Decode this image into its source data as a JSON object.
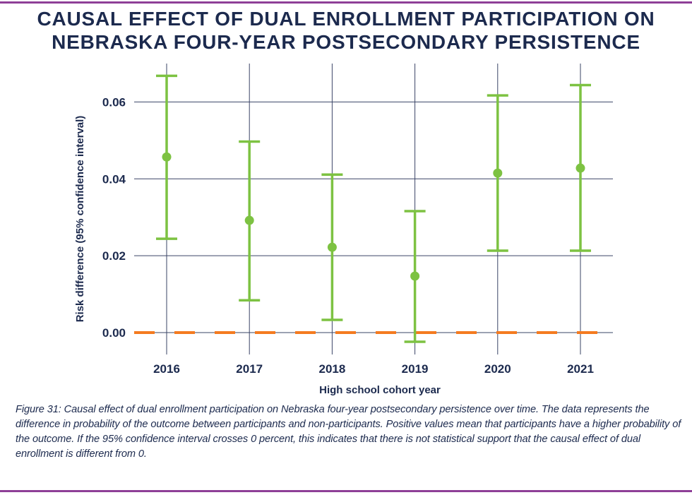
{
  "title_lines": [
    "CAUSAL EFFECT OF DUAL ENROLLMENT PARTICIPATION ON",
    "NEBRASKA FOUR-YEAR POSTSECONDARY PERSISTENCE"
  ],
  "caption": "Figure 31: Causal effect of dual enrollment participation on Nebraska four-year postsecondary persistence over time. The data represents the difference in probability of the outcome between participants and non-participants. Positive values mean that participants have a higher probability of the outcome. If the 95% confidence interval crosses 0 percent, this indicates that there is not statistical support that the causal effect of dual enrollment is different from 0.",
  "colors": {
    "text": "#1c2a4e",
    "point": "#7dc242",
    "reference_line": "#f47b20",
    "grid": "#3a4466",
    "rule": "#8e3f97"
  },
  "chart_data": {
    "type": "scatter",
    "subtype": "point with error bars",
    "title": "CAUSAL EFFECT OF DUAL ENROLLMENT PARTICIPATION ON NEBRASKA FOUR-YEAR POSTSECONDARY PERSISTENCE",
    "xlabel": "High school cohort year",
    "ylabel": "Risk difference (95% confidence interval)",
    "categories": [
      "2016",
      "2017",
      "2018",
      "2019",
      "2020",
      "2021"
    ],
    "estimate": [
      0.0457,
      0.0292,
      0.0222,
      0.0147,
      0.0415,
      0.0428
    ],
    "ci_lower": [
      0.0244,
      0.0084,
      0.0033,
      -0.0024,
      0.0213,
      0.0213
    ],
    "ci_upper": [
      0.0668,
      0.0497,
      0.0411,
      0.0316,
      0.0617,
      0.0644
    ],
    "yticks": [
      "0.00",
      "0.02",
      "0.04",
      "0.06"
    ],
    "ytick_values": [
      0,
      0.02,
      0.04,
      0.06
    ],
    "ylim": [
      -0.0057,
      0.07
    ],
    "reference_line": {
      "y": 0,
      "style": "dashed"
    },
    "grid": true,
    "legend": "none"
  }
}
